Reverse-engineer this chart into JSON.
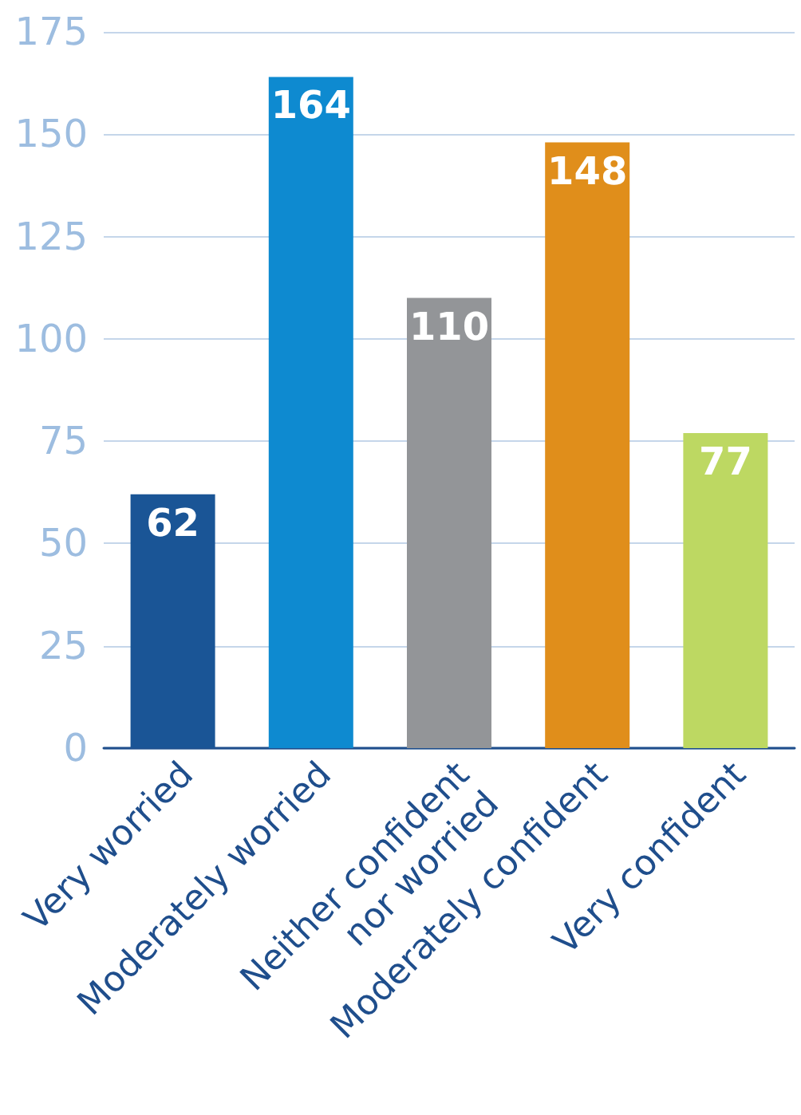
{
  "chart_data": {
    "type": "bar",
    "categories": [
      "Very worried",
      "Moderately worried",
      "Neither confident\nnor worried",
      "Moderately confident",
      "Very confident"
    ],
    "values": [
      62,
      164,
      110,
      148,
      77
    ],
    "colors": [
      "#1a5596",
      "#0e8ad0",
      "#939598",
      "#e08e1b",
      "#bdd862"
    ],
    "ylim": [
      0,
      175
    ],
    "yticks": [
      0,
      25,
      50,
      75,
      100,
      125,
      150,
      175
    ],
    "grid": "y",
    "data_labels": true
  }
}
